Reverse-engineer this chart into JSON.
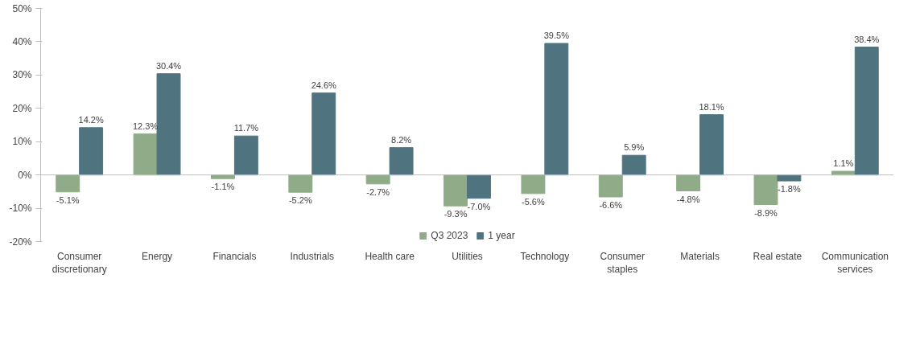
{
  "chart_data": {
    "type": "bar",
    "categories": [
      "Consumer discretionary",
      "Energy",
      "Financials",
      "Industrials",
      "Health care",
      "Utilities",
      "Technology",
      "Consumer staples",
      "Materials",
      "Real estate",
      "Communication services"
    ],
    "series": [
      {
        "name": "Q3 2023",
        "color": "#8fab88",
        "values": [
          -5.1,
          12.3,
          -1.1,
          -5.2,
          -2.7,
          -9.3,
          -5.6,
          -6.6,
          -4.8,
          -8.9,
          1.1
        ],
        "value_labels": [
          "-5.1%",
          "12.3%",
          "-1.1%",
          "-5.2%",
          "-2.7%",
          "-9.3%",
          "-5.6%",
          "-6.6%",
          "-4.8%",
          "-8.9%",
          "1.1%"
        ]
      },
      {
        "name": "1 year",
        "color": "#4f7480",
        "values": [
          14.2,
          30.4,
          11.7,
          24.6,
          8.2,
          -7.0,
          39.5,
          5.9,
          18.1,
          -1.8,
          38.4
        ],
        "value_labels": [
          "14.2%",
          "30.4%",
          "11.7%",
          "24.6%",
          "8.2%",
          "-7.0%",
          "39.5%",
          "5.9%",
          "18.1%",
          "-1.8%",
          "38.4%"
        ]
      }
    ],
    "ylim": [
      -20,
      50
    ],
    "yticks": [
      {
        "value": -20,
        "label": "-20%"
      },
      {
        "value": -10,
        "label": "-10%"
      },
      {
        "value": 0,
        "label": "0%"
      },
      {
        "value": 10,
        "label": "10%"
      },
      {
        "value": 20,
        "label": "20%"
      },
      {
        "value": 30,
        "label": "30%"
      },
      {
        "value": 40,
        "label": "40%"
      },
      {
        "value": 50,
        "label": "50%"
      }
    ],
    "ref_lines": [
      {
        "axis": "y",
        "value": 0,
        "color": "#bfbfbf"
      }
    ],
    "grid": false,
    "legend": "bottom"
  }
}
